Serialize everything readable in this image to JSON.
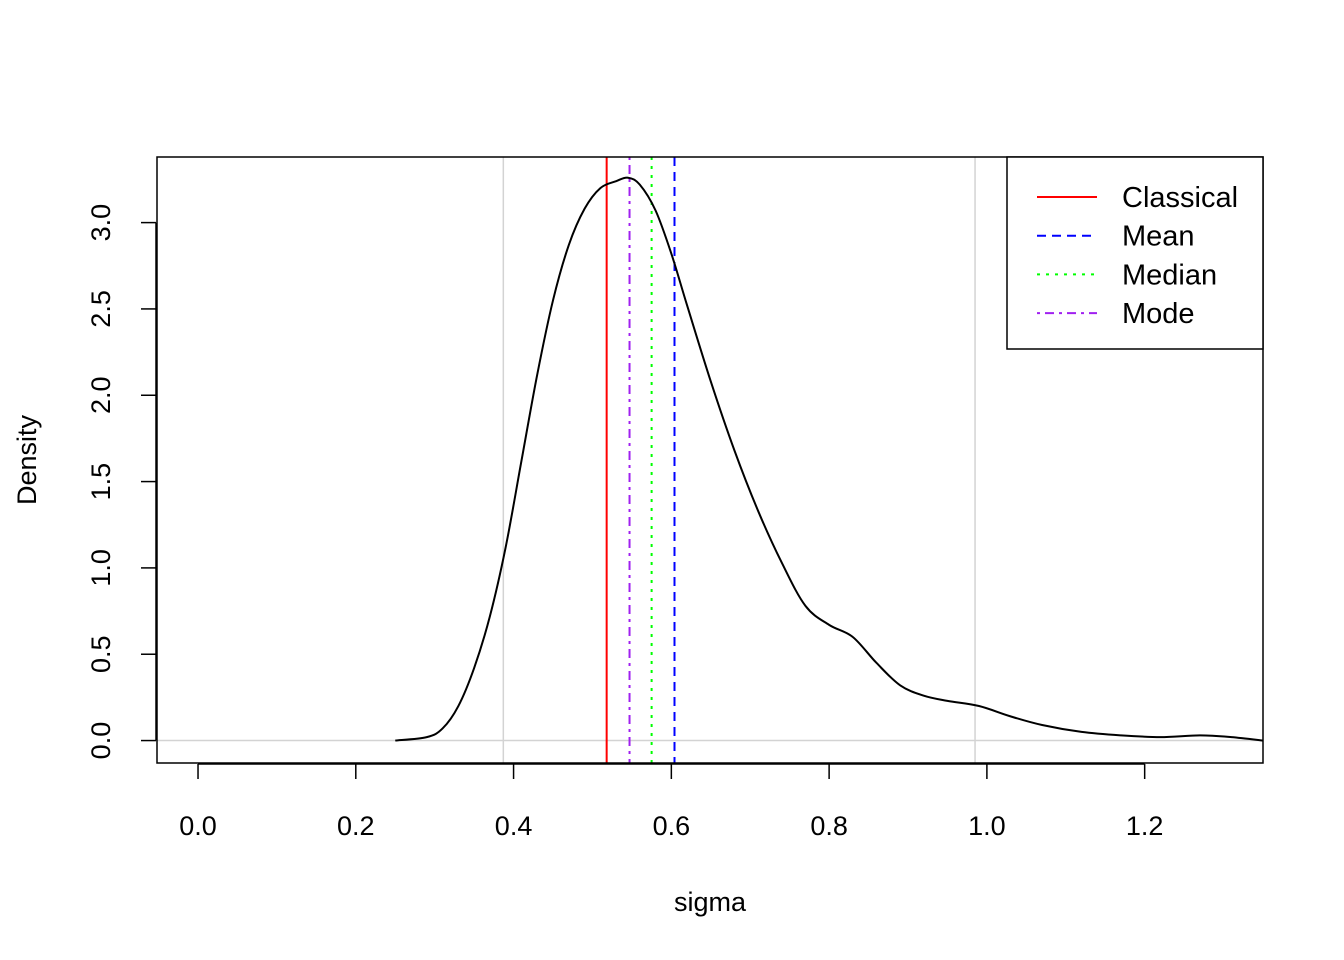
{
  "chart_data": {
    "type": "line",
    "title": "",
    "xlabel": "sigma",
    "ylabel": "Density",
    "xlim": [
      -0.052,
      1.35
    ],
    "ylim": [
      -0.13,
      3.38
    ],
    "x_ticks": [
      0.0,
      0.2,
      0.4,
      0.6,
      0.8,
      1.0,
      1.2
    ],
    "x_tick_labels": [
      "0.0",
      "0.2",
      "0.4",
      "0.6",
      "0.8",
      "1.0",
      "1.2"
    ],
    "y_ticks": [
      0.0,
      0.5,
      1.0,
      1.5,
      2.0,
      2.5,
      3.0
    ],
    "y_tick_labels": [
      "0.0",
      "0.5",
      "1.0",
      "1.5",
      "2.0",
      "2.5",
      "3.0"
    ],
    "grid_x": [
      0.387,
      0.985
    ],
    "grid_y": [
      0.0
    ],
    "density_curve": {
      "color": "#000000",
      "x": [
        0.25,
        0.29,
        0.31,
        0.33,
        0.35,
        0.37,
        0.39,
        0.41,
        0.43,
        0.45,
        0.47,
        0.49,
        0.51,
        0.53,
        0.545,
        0.56,
        0.58,
        0.6,
        0.62,
        0.65,
        0.68,
        0.71,
        0.74,
        0.77,
        0.8,
        0.83,
        0.86,
        0.89,
        0.92,
        0.95,
        0.99,
        1.03,
        1.07,
        1.12,
        1.17,
        1.22,
        1.27,
        1.31,
        1.35
      ],
      "y": [
        0.0,
        0.02,
        0.07,
        0.2,
        0.42,
        0.72,
        1.12,
        1.62,
        2.12,
        2.55,
        2.87,
        3.08,
        3.2,
        3.24,
        3.26,
        3.22,
        3.07,
        2.82,
        2.52,
        2.08,
        1.68,
        1.33,
        1.03,
        0.78,
        0.67,
        0.6,
        0.45,
        0.32,
        0.26,
        0.23,
        0.2,
        0.14,
        0.09,
        0.05,
        0.03,
        0.02,
        0.03,
        0.02,
        0.0
      ]
    },
    "vertical_lines": [
      {
        "name": "Classical",
        "x": 0.518,
        "color": "#ff0000",
        "dash": "solid"
      },
      {
        "name": "Mean",
        "x": 0.604,
        "color": "#0000ff",
        "dash": "dashed"
      },
      {
        "name": "Median",
        "x": 0.575,
        "color": "#00ff00",
        "dash": "dotted"
      },
      {
        "name": "Mode",
        "x": 0.547,
        "color": "#a020f0",
        "dash": "dotdash"
      }
    ],
    "legend": {
      "position": "top-right",
      "entries": [
        {
          "label": "Classical",
          "color": "#ff0000",
          "dash": "solid"
        },
        {
          "label": "Mean",
          "color": "#0000ff",
          "dash": "dashed"
        },
        {
          "label": "Median",
          "color": "#00ff00",
          "dash": "dotted"
        },
        {
          "label": "Mode",
          "color": "#a020f0",
          "dash": "dotdash"
        }
      ]
    },
    "grid_color": "#d3d3d3"
  }
}
